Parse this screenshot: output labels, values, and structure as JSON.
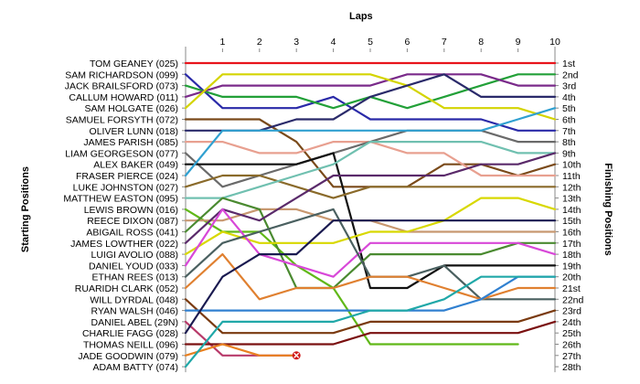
{
  "chart_data": {
    "type": "line",
    "title": "",
    "xlabel": "Laps",
    "ylabel_left": "Starting Positions",
    "ylabel_right": "Finishing Positions",
    "laps": [
      1,
      2,
      3,
      4,
      5,
      6,
      7,
      8,
      9,
      10
    ],
    "start_labels": [
      "TOM GEANEY (025)",
      "SAM RICHARDSON (099)",
      "JACK BRAILSFORD (073)",
      "CALLUM HOWARD (011)",
      "SAM HOLGATE (026)",
      "SAMUEL FORSYTH (072)",
      "OLIVER LUNN (018)",
      "JAMES PARISH (085)",
      "LIAM GEORGESON (077)",
      "ALEX BAKER (049)",
      "FRASER PIERCE (024)",
      "LUKE JOHNSTON (027)",
      "MATTHEW EASTON (095)",
      "LEWIS BROWN (016)",
      "REECE DIXON (087)",
      "ABIGAIL ROSS (041)",
      "JAMES LOWTHER (022)",
      "LUIGI AVOLIO (088)",
      "DANIEL YOUD (033)",
      "ETHAN REES (013)",
      "RUARIDH CLARK (052)",
      "WILL DYRDAL (048)",
      "RYAN WALSH (046)",
      "DANIEL ABEL (29N)",
      "CHARLIE FAGG (028)",
      "THOMAS NEILL (096)",
      "JADE GOODWIN (079)",
      "ADAM BATTY (074)"
    ],
    "finish_labels": [
      "1st",
      "2nd",
      "3rd",
      "4th",
      "5th",
      "6th",
      "7th",
      "8th",
      "9th",
      "10th",
      "11th",
      "12th",
      "13th",
      "14th",
      "15th",
      "16th",
      "17th",
      "18th",
      "19th",
      "20th",
      "21st",
      "22nd",
      "23rd",
      "24th",
      "25th",
      "26th",
      "27th",
      "28th"
    ],
    "series": [
      {
        "color": "#e8141c",
        "positions": [
          1,
          1,
          1,
          1,
          1,
          1,
          1,
          1,
          1,
          1,
          1
        ]
      },
      {
        "color": "#2a2aa8",
        "positions": [
          2,
          5,
          5,
          5,
          4,
          6,
          6,
          6,
          6,
          7,
          7
        ]
      },
      {
        "color": "#22a038",
        "positions": [
          3,
          4,
          4,
          4,
          5,
          4,
          5,
          4,
          3,
          2,
          2
        ]
      },
      {
        "color": "#7a2a8a",
        "positions": [
          4,
          3,
          3,
          3,
          3,
          3,
          2,
          2,
          2,
          3,
          3
        ]
      },
      {
        "color": "#d4d400",
        "positions": [
          5,
          2,
          2,
          2,
          2,
          2,
          3,
          5,
          5,
          5,
          6
        ]
      },
      {
        "color": "#7a4a1a",
        "positions": [
          6,
          6,
          6,
          8,
          12,
          12,
          12,
          10,
          10,
          11,
          10
        ]
      },
      {
        "color": "#2a2a6a",
        "positions": [
          7,
          7,
          7,
          6,
          6,
          4,
          3,
          2,
          4,
          4,
          4
        ]
      },
      {
        "color": "#e8a090",
        "positions": [
          8,
          8,
          9,
          9,
          8,
          8,
          9,
          9,
          11,
          11,
          11
        ]
      },
      {
        "color": "#6a6a6a",
        "positions": [
          9,
          12,
          11,
          10,
          9,
          8,
          7,
          7,
          7,
          8,
          8
        ]
      },
      {
        "color": "#111111",
        "positions": [
          10,
          10,
          10,
          10,
          9,
          21,
          21,
          19,
          19,
          19,
          19
        ]
      },
      {
        "color": "#30a0d0",
        "positions": [
          11,
          7,
          7,
          7,
          7,
          7,
          7,
          7,
          7,
          6,
          5
        ]
      },
      {
        "color": "#8a6a2a",
        "positions": [
          12,
          11,
          11,
          12,
          13,
          12,
          12,
          12,
          12,
          12,
          12
        ]
      },
      {
        "color": "#70c0b0",
        "positions": [
          13,
          13,
          12,
          11,
          10,
          8,
          8,
          8,
          8,
          9,
          9
        ]
      },
      {
        "color": "#60b818",
        "positions": [
          14,
          16,
          16,
          19,
          21,
          26,
          26,
          26,
          26,
          26,
          null
        ]
      },
      {
        "color": "#c89870",
        "positions": [
          15,
          15,
          14,
          14,
          15,
          15,
          16,
          16,
          16,
          16,
          16
        ]
      },
      {
        "color": "#4a8a30",
        "positions": [
          16,
          13,
          14,
          21,
          21,
          18,
          18,
          18,
          18,
          17,
          17
        ]
      },
      {
        "color": "#5a2a6a",
        "positions": [
          17,
          14,
          15,
          13,
          11,
          11,
          11,
          11,
          10,
          10,
          9
        ]
      },
      {
        "color": "#d8d800",
        "positions": [
          18,
          16,
          17,
          17,
          17,
          16,
          16,
          15,
          13,
          13,
          14
        ]
      },
      {
        "color": "#d848d8",
        "positions": [
          19,
          14,
          18,
          19,
          20,
          17,
          17,
          17,
          17,
          17,
          18
        ]
      },
      {
        "color": "#4a6060",
        "positions": [
          20,
          17,
          16,
          15,
          14,
          20,
          20,
          19,
          22,
          22,
          22
        ]
      },
      {
        "color": "#e08030",
        "positions": [
          21,
          18,
          22,
          21,
          21,
          20,
          20,
          21,
          22,
          21,
          21
        ]
      },
      {
        "color": "#7a3a10",
        "positions": [
          22,
          25,
          25,
          25,
          25,
          24,
          24,
          24,
          24,
          24,
          23
        ]
      },
      {
        "color": "#3080d0",
        "positions": [
          23,
          23,
          23,
          23,
          23,
          23,
          23,
          23,
          22,
          20,
          20
        ]
      },
      {
        "color": "#b83a6a",
        "positions": [
          24,
          27,
          27,
          27,
          null,
          null,
          null,
          null,
          null,
          null,
          null
        ]
      },
      {
        "color": "#1a1a50",
        "positions": [
          25,
          20,
          18,
          18,
          15,
          15,
          15,
          15,
          15,
          15,
          15
        ]
      },
      {
        "color": "#7a1010",
        "positions": [
          26,
          26,
          26,
          26,
          26,
          25,
          25,
          25,
          25,
          25,
          24
        ]
      },
      {
        "color": "#e88020",
        "positions": [
          27,
          26,
          27,
          27,
          null,
          null,
          null,
          null,
          null,
          null,
          null
        ]
      },
      {
        "color": "#20a8a8",
        "positions": [
          28,
          24,
          24,
          24,
          24,
          23,
          23,
          22,
          20,
          20,
          20
        ]
      }
    ],
    "retirement_marker": {
      "lap": 3,
      "position": 27,
      "color": "#d01818"
    }
  }
}
